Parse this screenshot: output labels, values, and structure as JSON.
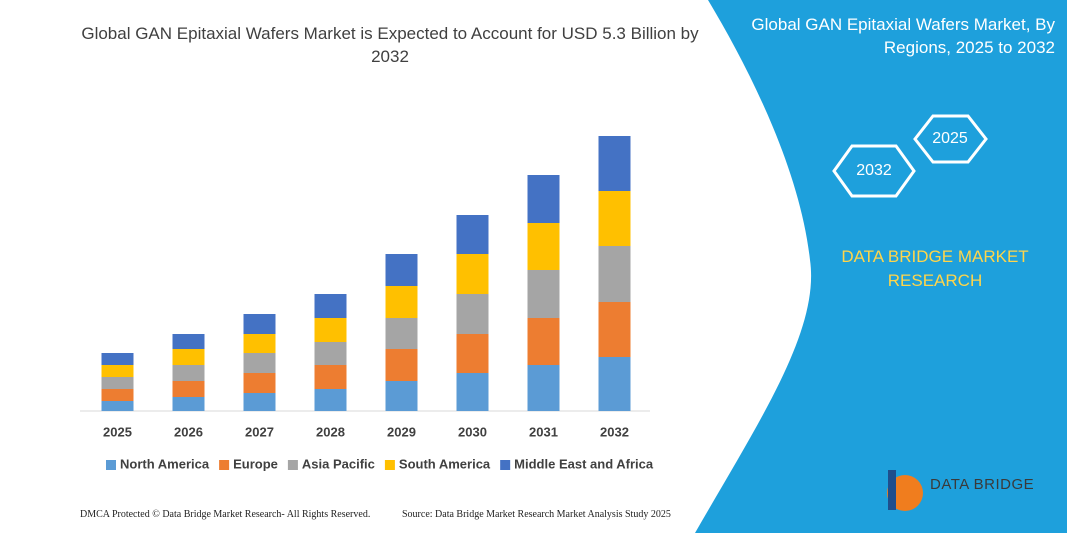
{
  "chart_data": {
    "type": "bar",
    "stacked": true,
    "title": "Global GAN Epitaxial Wafers Market is Expected to Account for USD 5.3 Billion by 2032",
    "categories": [
      "2025",
      "2026",
      "2027",
      "2028",
      "2029",
      "2030",
      "2031",
      "2032"
    ],
    "series": [
      {
        "name": "North America",
        "color": "#5b9bd5",
        "values": [
          10,
          14,
          18,
          22,
          30,
          38,
          46,
          54
        ]
      },
      {
        "name": "Europe",
        "color": "#ed7d31",
        "values": [
          12,
          16,
          20,
          24,
          32,
          39,
          47,
          55
        ]
      },
      {
        "name": "Asia Pacific",
        "color": "#a5a5a5",
        "values": [
          12,
          16,
          20,
          23,
          31,
          40,
          48,
          56
        ]
      },
      {
        "name": "South America",
        "color": "#ffc000",
        "values": [
          12,
          16,
          19,
          24,
          32,
          40,
          47,
          55
        ]
      },
      {
        "name": "Middle East and Africa",
        "color": "#4472c4",
        "values": [
          12,
          15,
          20,
          24,
          32,
          39,
          48,
          55
        ]
      }
    ]
  },
  "panel": {
    "title": "Global GAN Epitaxial Wafers Market, By Regions, 2025 to 2032",
    "hexagons": [
      "2025",
      "2032"
    ],
    "brand": "DATA BRIDGE MARKET RESEARCH"
  },
  "footer": {
    "left": "DMCA Protected © Data Bridge Market Research- All Rights Reserved.",
    "right": "Source: Data Bridge Market Research Market Analysis Study 2025"
  },
  "logo": "DATA BRIDGE"
}
